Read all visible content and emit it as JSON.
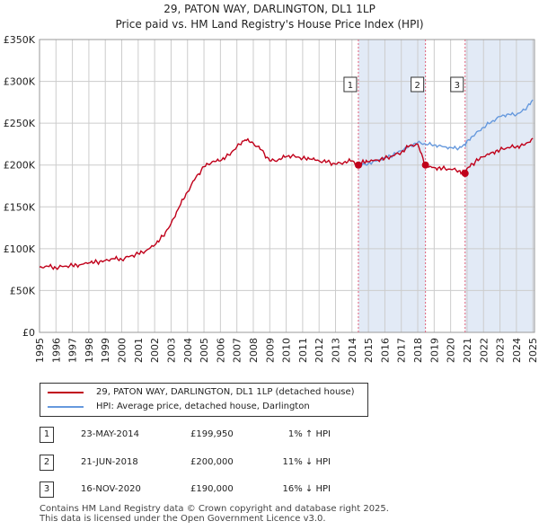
{
  "titles": {
    "line1": "29, PATON WAY, DARLINGTON, DL1 1LP",
    "line2": "Price paid vs. HM Land Registry's House Price Index (HPI)"
  },
  "colors": {
    "property": "#c0001a",
    "hpi": "#6699dd",
    "marker_line": "#e0607a",
    "shade": "#dde6f5"
  },
  "chart_data": {
    "type": "line",
    "title": "29, PATON WAY, DARLINGTON, DL1 1LP",
    "subtitle": "Price paid vs. HM Land Registry's House Price Index (HPI)",
    "xlabel": "",
    "ylabel": "",
    "xlim": [
      1995,
      2025.1
    ],
    "ylim": [
      0,
      350000
    ],
    "y_ticks": [
      0,
      50000,
      100000,
      150000,
      200000,
      250000,
      300000,
      350000
    ],
    "y_tick_labels": [
      "£0",
      "£50K",
      "£100K",
      "£150K",
      "£200K",
      "£250K",
      "£300K",
      "£350K"
    ],
    "x_ticks": [
      1995,
      1996,
      1997,
      1998,
      1999,
      2000,
      2001,
      2002,
      2003,
      2004,
      2005,
      2006,
      2007,
      2008,
      2009,
      2010,
      2011,
      2012,
      2013,
      2014,
      2015,
      2016,
      2017,
      2018,
      2019,
      2020,
      2021,
      2022,
      2023,
      2024,
      2025
    ],
    "grid": true,
    "series": [
      {
        "name": "29, PATON WAY, DARLINGTON, DL1 1LP (detached house)",
        "x": [
          1995.0,
          1995.5,
          1996.0,
          1996.5,
          1997.0,
          1997.5,
          1998.0,
          1998.5,
          1999.0,
          1999.5,
          2000.0,
          2000.5,
          2001.0,
          2001.5,
          2002.0,
          2002.5,
          2003.0,
          2003.5,
          2004.0,
          2004.5,
          2005.0,
          2005.5,
          2006.0,
          2006.5,
          2007.0,
          2007.5,
          2008.0,
          2008.5,
          2009.0,
          2009.5,
          2010.0,
          2010.5,
          2011.0,
          2011.5,
          2012.0,
          2012.5,
          2013.0,
          2013.5,
          2014.0,
          2014.39,
          2014.6,
          2015.0,
          2015.5,
          2016.0,
          2016.5,
          2017.0,
          2017.5,
          2018.0,
          2018.47,
          2018.6,
          2019.0,
          2019.5,
          2020.0,
          2020.5,
          2020.88,
          2021.0,
          2021.5,
          2022.0,
          2022.5,
          2023.0,
          2023.5,
          2024.0,
          2024.5,
          2025.0
        ],
        "values": [
          78000,
          79000,
          77000,
          79000,
          80000,
          81000,
          83000,
          84000,
          86000,
          88000,
          87000,
          91000,
          94000,
          98000,
          104000,
          115000,
          130000,
          150000,
          168000,
          185000,
          198000,
          204000,
          205000,
          212000,
          222000,
          230000,
          226000,
          218000,
          205000,
          206000,
          210000,
          211000,
          208000,
          207000,
          205000,
          204000,
          201000,
          203000,
          205000,
          199950,
          203000,
          204000,
          206000,
          208000,
          211000,
          215000,
          223000,
          225000,
          200000,
          198000,
          197000,
          196000,
          195000,
          193000,
          190000,
          196000,
          204000,
          210000,
          215000,
          218000,
          221000,
          222000,
          224000,
          232000
        ],
        "color": "#c0001a"
      },
      {
        "name": "HPI: Average price, detached house, Darlington",
        "x": [
          2014.39,
          2015.0,
          2015.5,
          2016.0,
          2016.5,
          2017.0,
          2017.5,
          2018.0,
          2018.47,
          2019.0,
          2019.5,
          2020.0,
          2020.5,
          2020.88,
          2021.0,
          2021.5,
          2022.0,
          2022.5,
          2023.0,
          2023.5,
          2024.0,
          2024.5,
          2025.0
        ],
        "values": [
          198000,
          202000,
          205000,
          209000,
          212000,
          217000,
          223000,
          227000,
          225000,
          224000,
          222000,
          221000,
          220000,
          224000,
          229000,
          237000,
          245000,
          252000,
          258000,
          261000,
          260000,
          266000,
          278000
        ],
        "color": "#6699dd"
      }
    ],
    "sales": [
      {
        "label": "1",
        "x": 2014.39,
        "value": 199950
      },
      {
        "label": "2",
        "x": 2018.47,
        "value": 200000
      },
      {
        "label": "3",
        "x": 2020.88,
        "value": 190000
      }
    ],
    "shaded_ranges": [
      [
        2014.39,
        2018.47
      ],
      [
        2020.88,
        2025.1
      ]
    ]
  },
  "legend": {
    "property": "29, PATON WAY, DARLINGTON, DL1 1LP (detached house)",
    "hpi": "HPI: Average price, detached house, Darlington"
  },
  "sales_table": [
    {
      "num": "1",
      "date": "23-MAY-2014",
      "price": "£199,950",
      "hpi": "1% ↑ HPI"
    },
    {
      "num": "2",
      "date": "21-JUN-2018",
      "price": "£200,000",
      "hpi": "11% ↓ HPI"
    },
    {
      "num": "3",
      "date": "16-NOV-2020",
      "price": "£190,000",
      "hpi": "16% ↓ HPI"
    }
  ],
  "footer": {
    "line1": "Contains HM Land Registry data © Crown copyright and database right 2025.",
    "line2": "This data is licensed under the Open Government Licence v3.0."
  }
}
